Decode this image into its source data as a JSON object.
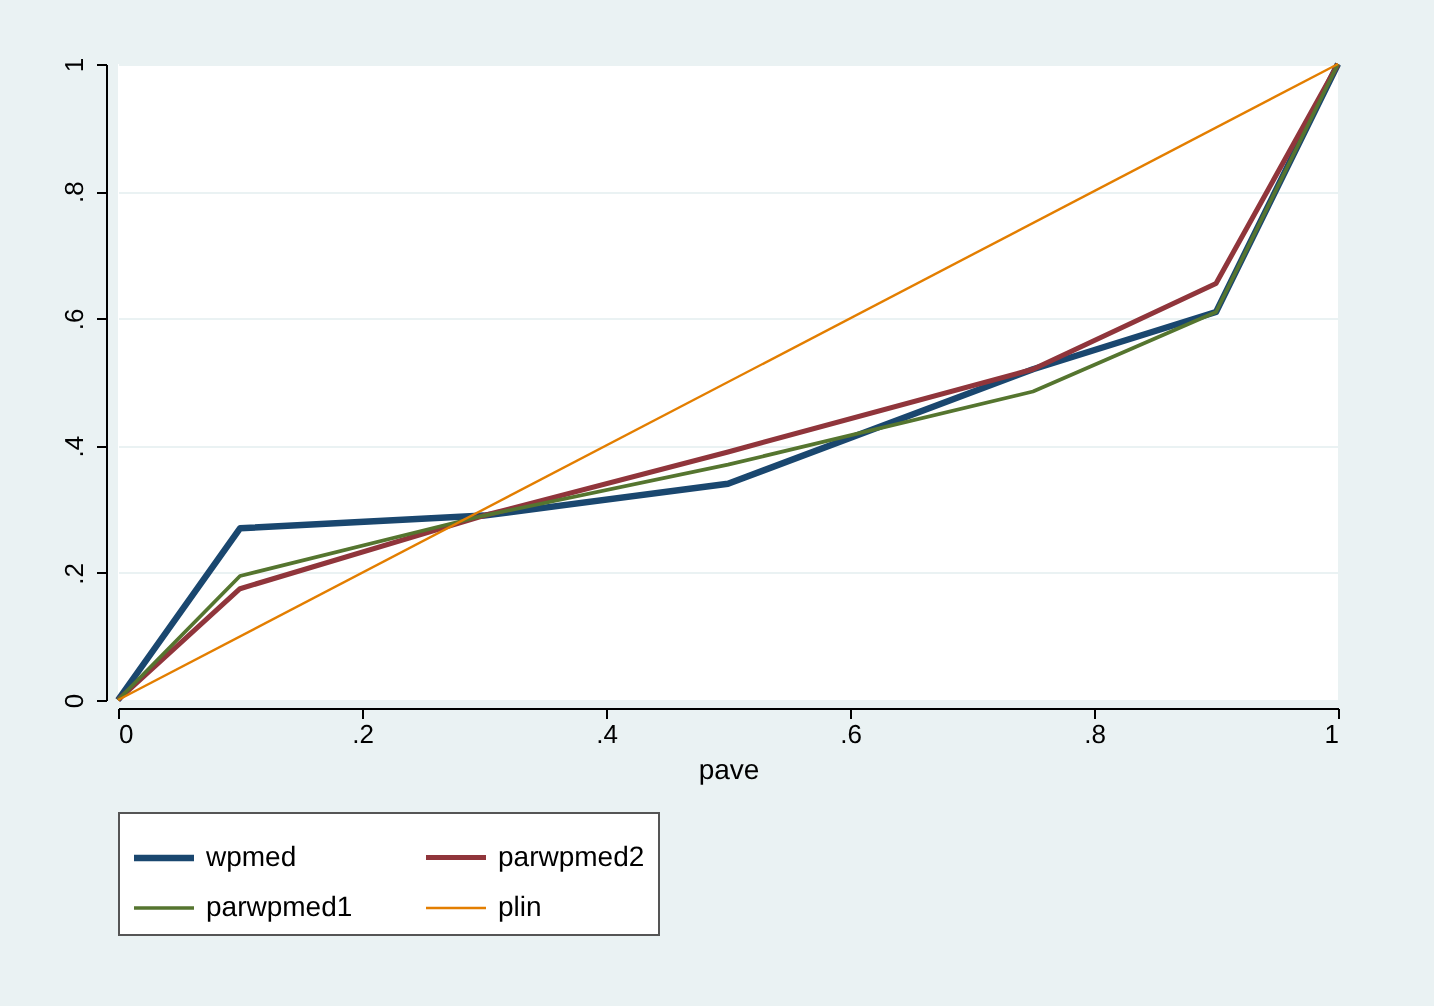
{
  "chart_data": {
    "type": "line",
    "xlabel": "pave",
    "xlim": [
      0,
      1
    ],
    "ylim": [
      0,
      1
    ],
    "xticks": [
      0,
      {
        "value": 0.2,
        "label": ".2"
      },
      {
        "value": 0.4,
        "label": ".4"
      },
      {
        "value": 0.6,
        "label": ".6"
      },
      {
        "value": 0.8,
        "label": ".8"
      },
      1
    ],
    "yticks": [
      0,
      {
        "value": 0.2,
        "label": ".2"
      },
      {
        "value": 0.4,
        "label": ".4"
      },
      {
        "value": 0.6,
        "label": ".6"
      },
      {
        "value": 0.8,
        "label": ".8"
      },
      1
    ],
    "grid": "y",
    "legend": "bottom",
    "marker": "none",
    "line_style": "solid",
    "series": [
      {
        "name": "wpmed",
        "color": "#1a476f",
        "x": [
          0,
          0.1,
          0.3,
          0.5,
          0.75,
          0.9,
          1
        ],
        "values": [
          0,
          0.27,
          0.29,
          0.34,
          0.52,
          0.61,
          1
        ]
      },
      {
        "name": "parwpmed2",
        "color": "#90353b",
        "x": [
          0,
          0.1,
          0.3,
          0.5,
          0.75,
          0.9,
          1
        ],
        "values": [
          0,
          0.175,
          0.29,
          0.39,
          0.52,
          0.655,
          1
        ]
      },
      {
        "name": "parwpmed1",
        "color": "#55752f",
        "x": [
          0,
          0.1,
          0.3,
          0.5,
          0.75,
          0.9,
          1
        ],
        "values": [
          0,
          0.195,
          0.29,
          0.37,
          0.485,
          0.61,
          1
        ]
      },
      {
        "name": "plin",
        "color": "#e37e00",
        "x": [
          0,
          1
        ],
        "values": [
          0,
          1
        ]
      }
    ]
  }
}
